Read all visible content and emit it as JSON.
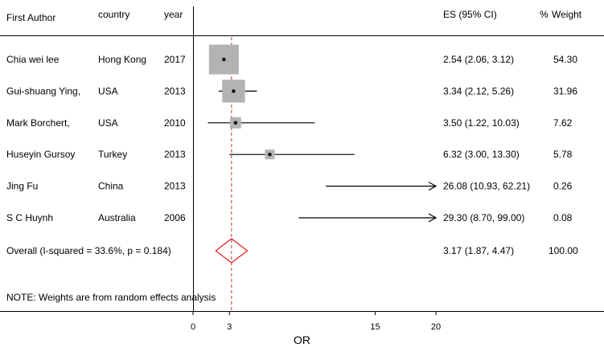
{
  "header": {
    "author": "First Author",
    "country": "country",
    "year": "year",
    "es": "ES (95% CI)",
    "weight_prefix": "%",
    "weight": "Weight"
  },
  "note": "NOTE: Weights are from random effects analysis",
  "colors": {
    "box": "#b3b3b3",
    "line": "#000000",
    "reference": "#c0392b",
    "diamond": "#e31a1c"
  },
  "chart_data": {
    "type": "forest",
    "xlabel": "OR",
    "xticks": [
      0,
      3,
      15,
      20
    ],
    "xlim": [
      0,
      20
    ],
    "reference_line": 3.17,
    "grid": false,
    "studies": [
      {
        "author": "Chia wei lee",
        "country": "Hong Kong",
        "year": "2017",
        "es": 2.54,
        "lower": 2.06,
        "upper": 3.12,
        "es_label": "2.54 (2.06, 3.12)",
        "weight": 54.3,
        "weight_label": "54.30"
      },
      {
        "author": "Gui-shuang Ying,",
        "country": "USA",
        "year": "2013",
        "es": 3.34,
        "lower": 2.12,
        "upper": 5.26,
        "es_label": "3.34 (2.12, 5.26)",
        "weight": 31.96,
        "weight_label": "31.96"
      },
      {
        "author": "Mark Borchert,",
        "country": "USA",
        "year": "2010",
        "es": 3.5,
        "lower": 1.22,
        "upper": 10.03,
        "es_label": "3.50 (1.22, 10.03)",
        "weight": 7.62,
        "weight_label": "7.62"
      },
      {
        "author": "Huseyin Gursoy",
        "country": "Turkey",
        "year": "2013",
        "es": 6.32,
        "lower": 3.0,
        "upper": 13.3,
        "es_label": "6.32 (3.00, 13.30)",
        "weight": 5.78,
        "weight_label": "5.78"
      },
      {
        "author": "Jing Fu",
        "country": "China",
        "year": "2013",
        "es": 26.08,
        "lower": 10.93,
        "upper": 62.21,
        "es_label": "26.08 (10.93, 62.21)",
        "weight": 0.26,
        "weight_label": "0.26"
      },
      {
        "author": "S C Huynh",
        "country": "Australia",
        "year": "2006",
        "es": 29.3,
        "lower": 8.7,
        "upper": 99.0,
        "es_label": "29.30 (8.70, 99.00)",
        "weight": 0.08,
        "weight_label": "0.08"
      }
    ],
    "overall": {
      "label": "Overall  (I-squared = 33.6%, p = 0.184)",
      "es": 3.17,
      "lower": 1.87,
      "upper": 4.47,
      "es_label": "3.17 (1.87, 4.47)",
      "weight_label": "100.00"
    }
  }
}
